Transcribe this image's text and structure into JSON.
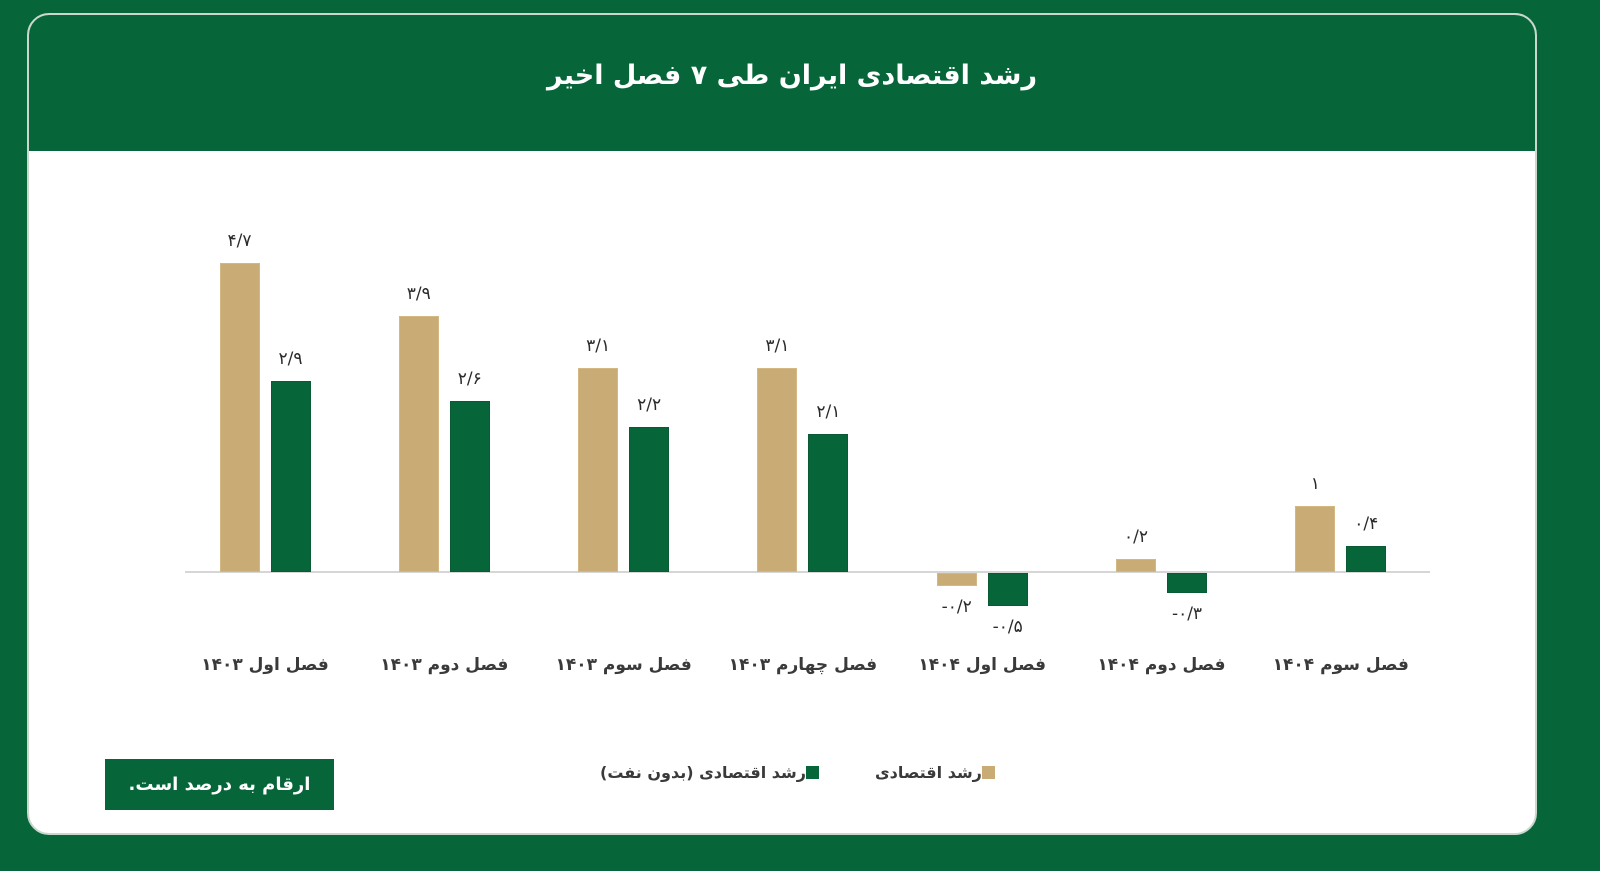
{
  "title": "رشد اقتصادی ایران طی ۷ فصل اخیر",
  "note": "ارقام به درصد است.",
  "colors": {
    "background": "#066639",
    "series_economic_growth": "#c9ab76",
    "series_non_oil_growth": "#066639",
    "baseline": "#d6d6d6"
  },
  "legend": {
    "items": [
      {
        "label": "رشد اقتصادی (بدون نفت)",
        "color": "#066639"
      },
      {
        "label": "رشد اقتصادی",
        "color": "#c9ab76"
      }
    ]
  },
  "chart_data": {
    "type": "bar",
    "title": "رشد اقتصادی ایران طی ۷ فصل اخیر",
    "xlabel": "",
    "ylabel": "",
    "unit": "percent",
    "grid": false,
    "legend_position": "bottom",
    "categories": [
      "فصل اول ۱۴۰۳",
      "فصل دوم ۱۴۰۳",
      "فصل سوم ۱۴۰۳",
      "فصل چهارم ۱۴۰۳",
      "فصل اول ۱۴۰۴",
      "فصل دوم ۱۴۰۴",
      "فصل سوم ۱۴۰۴"
    ],
    "series": [
      {
        "name": "رشد اقتصادی",
        "color": "#c9ab76",
        "values": [
          4.7,
          3.9,
          3.1,
          3.1,
          -0.2,
          0.2,
          1.0
        ],
        "labels": [
          "۴/۷",
          "۳/۹",
          "۳/۱",
          "۳/۱",
          "-۰/۲",
          "۰/۲",
          "۱"
        ]
      },
      {
        "name": "رشد اقتصادی (بدون نفت)",
        "color": "#066639",
        "values": [
          2.9,
          2.6,
          2.2,
          2.1,
          -0.5,
          -0.3,
          0.4
        ],
        "labels": [
          "۲/۹",
          "۲/۶",
          "۲/۲",
          "۲/۱",
          "-۰/۵",
          "-۰/۳",
          "۰/۴"
        ]
      }
    ],
    "ylim": [
      -0.5,
      4.7
    ]
  }
}
